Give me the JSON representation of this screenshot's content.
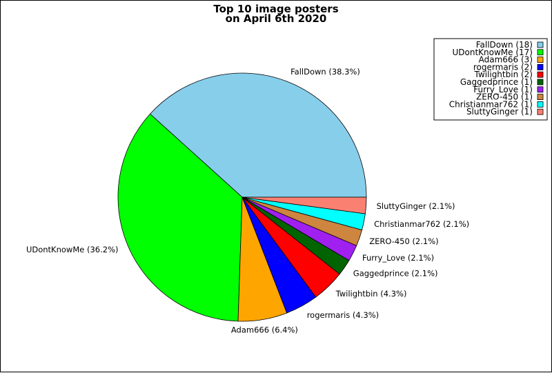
{
  "chart_data": {
    "type": "pie",
    "title_lines": [
      "Top 10 image posters",
      "on April 6th 2020"
    ],
    "legend_position": "top-right",
    "slices": [
      {
        "name": "FallDown",
        "value": 18,
        "pct_label": "FallDown (38.3%)",
        "legend_label": "FallDown (18)",
        "color": "#87ceeb"
      },
      {
        "name": "UDontKnowMe",
        "value": 17,
        "pct_label": "UDontKnowMe (36.2%)",
        "legend_label": "UDontKnowMe (17)",
        "color": "#00ff00"
      },
      {
        "name": "Adam666",
        "value": 3,
        "pct_label": "Adam666 (6.4%)",
        "legend_label": "Adam666 (3)",
        "color": "#ffa500"
      },
      {
        "name": "rogermaris",
        "value": 2,
        "pct_label": "rogermaris (4.3%)",
        "legend_label": "rogermaris (2)",
        "color": "#0000ff"
      },
      {
        "name": "Twilightbin",
        "value": 2,
        "pct_label": "Twilightbin (4.3%)",
        "legend_label": "Twilightbin (2)",
        "color": "#ff0000"
      },
      {
        "name": "Gaggedprince",
        "value": 1,
        "pct_label": "Gaggedprince (2.1%)",
        "legend_label": "Gaggedprince (1)",
        "color": "#006400"
      },
      {
        "name": "Furry_Love",
        "value": 1,
        "pct_label": "Furry_Love (2.1%)",
        "legend_label": "Furry_Love (1)",
        "color": "#a020f0"
      },
      {
        "name": "ZERO-450",
        "value": 1,
        "pct_label": "ZERO-450 (2.1%)",
        "legend_label": "ZERO-450 (1)",
        "color": "#cd853f"
      },
      {
        "name": "Christianmar762",
        "value": 1,
        "pct_label": "Christianmar762 (2.1%)",
        "legend_label": "Christianmar762 (1)",
        "color": "#00ffff"
      },
      {
        "name": "SluttyGinger",
        "value": 1,
        "pct_label": "SluttyGinger (2.1%)",
        "legend_label": "SluttyGinger (1)",
        "color": "#fa8072"
      }
    ]
  }
}
